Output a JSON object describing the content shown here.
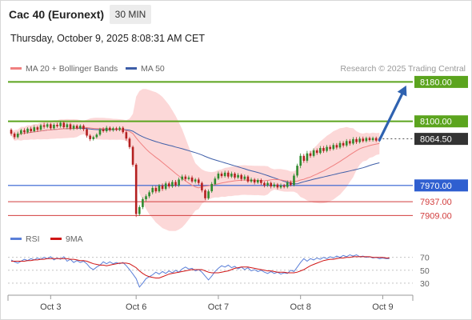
{
  "header": {
    "instrument": "Cac 40 (Euronext)",
    "timeframe": "30 MIN",
    "datetime": "Thursday, October 9, 2025 8:08:31 AM CET"
  },
  "legend": {
    "bollinger_label": "MA 20 + Bollinger Bands",
    "ma50_label": "MA 50",
    "credit": "Research © 2025 Trading Central",
    "rsi_label": "RSI",
    "rsi_ma_label": "9MA"
  },
  "colors": {
    "bull": "#2e8b2e",
    "bear": "#b42020",
    "resistance": "#5ba41e",
    "support": "#2f5fd0",
    "target": "#d23c3c",
    "ma20": "#f08080",
    "ma50": "#3e5ea8",
    "band": "#fcd4d4",
    "arrow": "#2f62b0",
    "current": "#333333",
    "rsi": "#5a7fd8",
    "rsi_ma": "#d01515"
  },
  "chart_data": {
    "type": "candlestick",
    "ylim": [
      7895,
      8192
    ],
    "x_labels": [
      {
        "label": "Oct 3",
        "bar": 12
      },
      {
        "label": "Oct 6",
        "bar": 38
      },
      {
        "label": "Oct 7",
        "bar": 63
      },
      {
        "label": "Oct 8",
        "bar": 88
      },
      {
        "label": "Oct 9",
        "bar": 113
      }
    ],
    "levels": [
      {
        "value": 8180.0,
        "label": "8180.00",
        "kind": "resistance"
      },
      {
        "value": 8100.0,
        "label": "8100.00",
        "kind": "resistance"
      },
      {
        "value": 8064.5,
        "label": "8064.50",
        "kind": "current"
      },
      {
        "value": 7970.0,
        "label": "7970.00",
        "kind": "support"
      },
      {
        "value": 7937.0,
        "label": "7937.00",
        "kind": "target"
      },
      {
        "value": 7909.0,
        "label": "7909.00",
        "kind": "target"
      }
    ],
    "projection": {
      "from_bar": 112,
      "from_value": 8062,
      "to_bar": 120,
      "to_value": 8177
    },
    "candles": [
      [
        8083,
        8075,
        8086,
        8071
      ],
      [
        8075,
        8068,
        8078,
        8064
      ],
      [
        8068,
        8075,
        8079,
        8065
      ],
      [
        8075,
        8082,
        8085,
        8072
      ],
      [
        8082,
        8078,
        8086,
        8074
      ],
      [
        8078,
        8085,
        8088,
        8075
      ],
      [
        8085,
        8080,
        8089,
        8077
      ],
      [
        8080,
        8088,
        8092,
        8078
      ],
      [
        8088,
        8083,
        8091,
        8079
      ],
      [
        8083,
        8092,
        8095,
        8081
      ],
      [
        8092,
        8089,
        8097,
        8085
      ],
      [
        8089,
        8094,
        8097,
        8086
      ],
      [
        8094,
        8086,
        8097,
        8083
      ],
      [
        8086,
        8093,
        8096,
        8083
      ],
      [
        8093,
        8090,
        8097,
        8087
      ],
      [
        8090,
        8097,
        8101,
        8087
      ],
      [
        8097,
        8088,
        8100,
        8085
      ],
      [
        8088,
        8094,
        8097,
        8084
      ],
      [
        8094,
        8085,
        8097,
        8082
      ],
      [
        8085,
        8091,
        8094,
        8082
      ],
      [
        8091,
        8086,
        8094,
        8083
      ],
      [
        8086,
        8091,
        8094,
        8083
      ],
      [
        8091,
        8084,
        8094,
        8080
      ],
      [
        8084,
        8071,
        8087,
        8067
      ],
      [
        8071,
        8064,
        8074,
        8060
      ],
      [
        8064,
        8068,
        8071,
        8061
      ],
      [
        8068,
        8073,
        8076,
        8065
      ],
      [
        8073,
        8084,
        8087,
        8070
      ],
      [
        8084,
        8080,
        8088,
        8077
      ],
      [
        8080,
        8087,
        8091,
        8077
      ],
      [
        8087,
        8082,
        8090,
        8079
      ],
      [
        8082,
        8086,
        8089,
        8079
      ],
      [
        8086,
        8083,
        8089,
        8080
      ],
      [
        8083,
        8087,
        8090,
        8080
      ],
      [
        8087,
        8078,
        8090,
        8075
      ],
      [
        8078,
        8065,
        8081,
        8061
      ],
      [
        8065,
        8048,
        8068,
        8044
      ],
      [
        8048,
        8012,
        8051,
        8008
      ],
      [
        8012,
        7912,
        8015,
        7906
      ],
      [
        7912,
        7926,
        7930,
        7908
      ],
      [
        7926,
        7942,
        7946,
        7922
      ],
      [
        7942,
        7948,
        7952,
        7938
      ],
      [
        7948,
        7956,
        7960,
        7944
      ],
      [
        7956,
        7965,
        7969,
        7952
      ],
      [
        7965,
        7958,
        7969,
        7954
      ],
      [
        7958,
        7970,
        7973,
        7955
      ],
      [
        7970,
        7963,
        7974,
        7959
      ],
      [
        7963,
        7974,
        7978,
        7960
      ],
      [
        7974,
        7968,
        7978,
        7964
      ],
      [
        7968,
        7977,
        7981,
        7965
      ],
      [
        7977,
        7970,
        7981,
        7967
      ],
      [
        7970,
        7982,
        7986,
        7967
      ],
      [
        7982,
        7988,
        7992,
        7979
      ],
      [
        7988,
        7983,
        7992,
        7979
      ],
      [
        7983,
        7986,
        7990,
        7980
      ],
      [
        7986,
        7978,
        7990,
        7975
      ],
      [
        7978,
        7982,
        7985,
        7974
      ],
      [
        7982,
        7975,
        7986,
        7971
      ],
      [
        7975,
        7960,
        7978,
        7956
      ],
      [
        7960,
        7944,
        7963,
        7940
      ],
      [
        7944,
        7958,
        7962,
        7941
      ],
      [
        7958,
        7973,
        7977,
        7955
      ],
      [
        7973,
        7984,
        7988,
        7970
      ],
      [
        7984,
        7994,
        7998,
        7981
      ],
      [
        7994,
        7989,
        7998,
        7985
      ],
      [
        7989,
        7996,
        8000,
        7986
      ],
      [
        7996,
        7988,
        8000,
        7984
      ],
      [
        7988,
        7994,
        7998,
        7985
      ],
      [
        7994,
        7986,
        7997,
        7982
      ],
      [
        7986,
        7991,
        7995,
        7983
      ],
      [
        7991,
        7983,
        7994,
        7979
      ],
      [
        7983,
        7988,
        7992,
        7980
      ],
      [
        7988,
        7978,
        7991,
        7975
      ],
      [
        7978,
        7982,
        7986,
        7975
      ],
      [
        7982,
        7976,
        7985,
        7972
      ],
      [
        7976,
        7981,
        7984,
        7973
      ],
      [
        7981,
        7975,
        7984,
        7971
      ],
      [
        7975,
        7970,
        7978,
        7966
      ],
      [
        7970,
        7975,
        7979,
        7967
      ],
      [
        7975,
        7968,
        7978,
        7964
      ],
      [
        7968,
        7972,
        7976,
        7965
      ],
      [
        7972,
        7966,
        7975,
        7962
      ],
      [
        7966,
        7970,
        7974,
        7963
      ],
      [
        7970,
        7967,
        7973,
        7964
      ],
      [
        7967,
        7976,
        7980,
        7964
      ],
      [
        7976,
        7971,
        7980,
        7968
      ],
      [
        7971,
        7990,
        7994,
        7968
      ],
      [
        7990,
        8010,
        8014,
        7986
      ],
      [
        8010,
        8030,
        8035,
        8005
      ],
      [
        8030,
        8020,
        8034,
        8016
      ],
      [
        8020,
        8035,
        8040,
        8016
      ],
      [
        8035,
        8030,
        8040,
        8026
      ],
      [
        8030,
        8041,
        8045,
        8027
      ],
      [
        8041,
        8036,
        8045,
        8032
      ],
      [
        8036,
        8046,
        8050,
        8033
      ],
      [
        8046,
        8040,
        8050,
        8036
      ],
      [
        8040,
        8048,
        8052,
        8037
      ],
      [
        8048,
        8044,
        8052,
        8040
      ],
      [
        8044,
        8052,
        8056,
        8041
      ],
      [
        8052,
        8047,
        8056,
        8043
      ],
      [
        8047,
        8056,
        8060,
        8044
      ],
      [
        8056,
        8051,
        8060,
        8047
      ],
      [
        8051,
        8060,
        8064,
        8048
      ],
      [
        8060,
        8055,
        8064,
        8051
      ],
      [
        8055,
        8064,
        8068,
        8052
      ],
      [
        8064,
        8058,
        8068,
        8054
      ],
      [
        8058,
        8065,
        8069,
        8055
      ],
      [
        8065,
        8060,
        8069,
        8057
      ],
      [
        8060,
        8066,
        8069,
        8057
      ],
      [
        8066,
        8062,
        8069,
        8059
      ],
      [
        8062,
        8066,
        8069,
        8059
      ],
      [
        8066,
        8061,
        8069,
        8058
      ],
      [
        8061,
        8065,
        8068,
        8058
      ]
    ],
    "rsi": {
      "ticks": [
        70,
        50,
        30
      ],
      "ylim": [
        20,
        82
      ],
      "values": [
        66,
        63,
        61,
        64,
        67,
        65,
        68,
        66,
        69,
        67,
        70,
        68,
        71,
        66,
        69,
        67,
        71,
        64,
        67,
        62,
        65,
        62,
        64,
        60,
        54,
        51,
        55,
        58,
        63,
        60,
        63,
        60,
        62,
        60,
        62,
        57,
        51,
        44,
        37,
        24,
        30,
        37,
        40,
        43,
        47,
        44,
        48,
        45,
        49,
        46,
        50,
        47,
        52,
        55,
        52,
        53,
        49,
        51,
        47,
        41,
        35,
        41,
        48,
        53,
        57,
        55,
        58,
        54,
        56,
        52,
        55,
        51,
        54,
        49,
        51,
        48,
        50,
        47,
        45,
        48,
        45,
        47,
        44,
        46,
        45,
        50,
        48,
        55,
        62,
        68,
        64,
        68,
        66,
        69,
        67,
        70,
        68,
        71,
        69,
        72,
        70,
        73,
        71,
        74,
        72,
        74,
        71,
        72,
        70,
        71,
        69,
        70,
        68,
        69,
        68,
        68
      ],
      "ma": [
        64,
        64,
        64,
        64,
        64,
        65,
        65,
        66,
        66,
        67,
        67,
        68,
        68,
        68,
        68,
        68,
        68,
        68,
        67,
        67,
        66,
        65,
        65,
        64,
        62,
        60,
        59,
        58,
        58,
        57,
        58,
        59,
        60,
        61,
        61,
        61,
        60,
        57,
        54,
        49,
        45,
        42,
        40,
        39,
        38,
        38,
        40,
        42,
        44,
        45,
        46,
        47,
        48,
        49,
        50,
        51,
        51,
        51,
        51,
        49,
        47,
        46,
        46,
        46,
        47,
        48,
        49,
        51,
        53,
        54,
        55,
        55,
        55,
        54,
        53,
        52,
        51,
        50,
        49,
        49,
        48,
        47,
        47,
        47,
        46,
        46,
        46,
        47,
        49,
        51,
        54,
        57,
        59,
        61,
        63,
        65,
        66,
        67,
        67,
        68,
        69,
        69,
        70,
        70,
        71,
        71,
        71,
        71,
        71,
        71,
        70,
        70,
        70,
        70,
        69,
        69
      ]
    }
  }
}
